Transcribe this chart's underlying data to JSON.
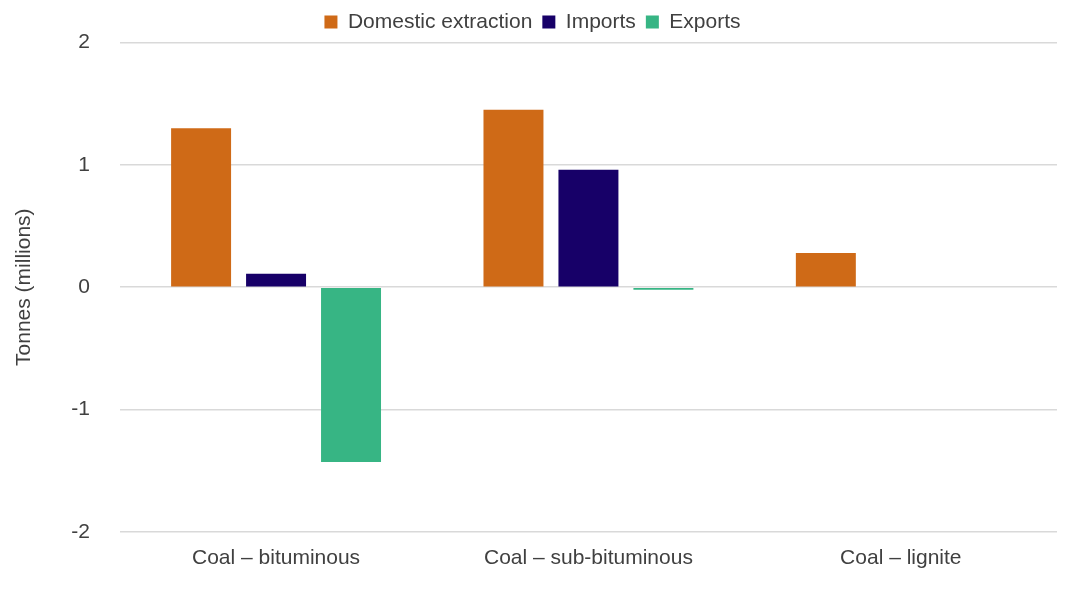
{
  "chart_data": {
    "type": "bar",
    "ylabel": "Tonnes (millions)",
    "categories": [
      "Coal – bituminous",
      "Coal – sub-bituminous",
      "Coal – lignite"
    ],
    "series": [
      {
        "name": "Domestic extraction",
        "color": "#cf6a17",
        "values": [
          1.3,
          1.45,
          0.28
        ]
      },
      {
        "name": "Imports",
        "color": "#170068",
        "values": [
          0.11,
          0.96,
          0
        ]
      },
      {
        "name": "Exports",
        "color": "#37b584",
        "values": [
          -1.43,
          -0.02,
          0
        ]
      }
    ],
    "ylim": [
      -2,
      2
    ],
    "yticks": [
      -2,
      -1,
      0,
      1,
      2
    ],
    "grid": "y",
    "legend": "top"
  }
}
